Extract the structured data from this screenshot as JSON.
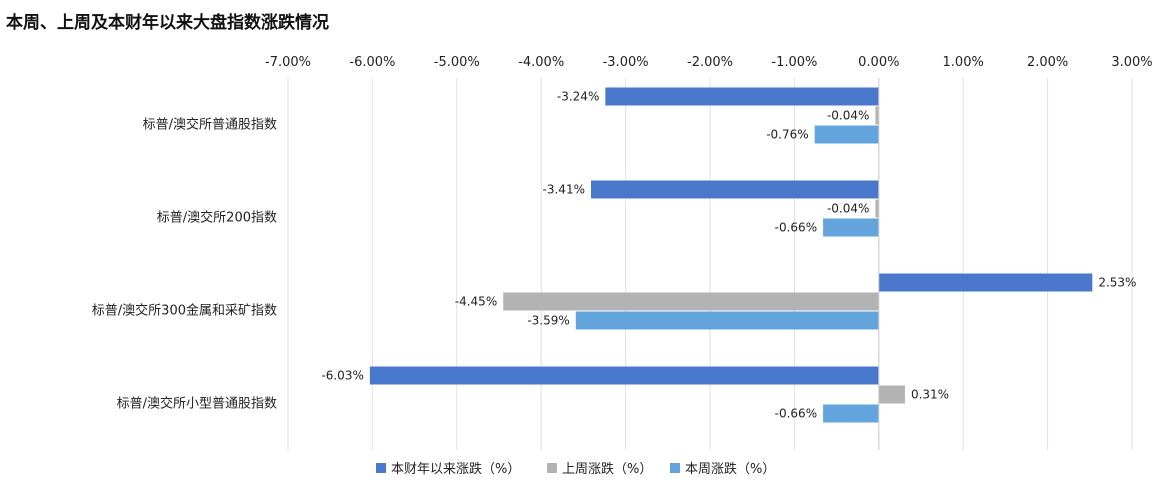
{
  "title": "本周、上周及本财年以来大盘指数涨跌情况",
  "colors": {
    "fytd": "#4a78cc",
    "last_week": "#b3b3b3",
    "this_week": "#63a4dc",
    "grid": "#e2e2e2"
  },
  "chart_data": {
    "type": "bar",
    "orientation": "horizontal",
    "title": "本周、上周及本财年以来大盘指数涨跌情况",
    "categories": [
      "标普/澳交所普通股指数",
      "标普/澳交所200指数",
      "标普/澳交所300金属和采矿指数",
      "标普/澳交所小型普通股指数"
    ],
    "series": [
      {
        "name": "本财年以来涨跌（%）",
        "values": [
          -3.24,
          -3.41,
          2.53,
          -6.03
        ],
        "labels": [
          "-3.24%",
          "-3.41%",
          "2.53%",
          "-6.03%"
        ]
      },
      {
        "name": "上周涨跌（%）",
        "values": [
          -0.04,
          -0.04,
          -4.45,
          0.31
        ],
        "labels": [
          "-0.04%",
          "-0.04%",
          "-4.45%",
          "0.31%"
        ]
      },
      {
        "name": "本周涨跌（%）",
        "values": [
          -0.76,
          -0.66,
          -3.59,
          -0.66
        ],
        "labels": [
          "-0.76%",
          "-0.66%",
          "-3.59%",
          "-0.66%"
        ]
      }
    ],
    "xlim": [
      -7,
      3
    ],
    "xticks": [
      -7,
      -6,
      -5,
      -4,
      -3,
      -2,
      -1,
      0,
      1,
      2,
      3
    ],
    "xtick_labels": [
      "-7.00%",
      "-6.00%",
      "-5.00%",
      "-4.00%",
      "-3.00%",
      "-2.00%",
      "-1.00%",
      "0.00%",
      "1.00%",
      "2.00%",
      "3.00%"
    ],
    "axis_position": "top",
    "grid": true,
    "legend_position": "bottom"
  }
}
